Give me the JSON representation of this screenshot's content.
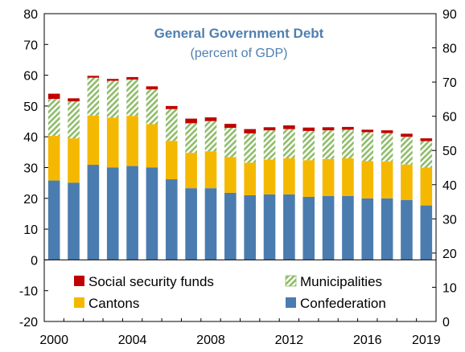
{
  "chart_data": {
    "type": "bar",
    "stacked": true,
    "title": "General Government Debt",
    "subtitle": "(percent of GDP)",
    "x": [
      2000,
      2001,
      2002,
      2003,
      2004,
      2005,
      2006,
      2007,
      2008,
      2009,
      2010,
      2011,
      2012,
      2013,
      2014,
      2015,
      2016,
      2017,
      2018,
      2019
    ],
    "x_tick_labels": [
      "2000",
      "2004",
      "2008",
      "2012",
      "2016",
      "2019"
    ],
    "y_left": {
      "ylim": [
        -20,
        80
      ],
      "ticks": [
        "-20",
        "-10",
        "0",
        "10",
        "20",
        "30",
        "40",
        "50",
        "60",
        "70",
        "80"
      ]
    },
    "y_right": {
      "ylim": [
        0,
        90
      ],
      "ticks": [
        "0",
        "10",
        "20",
        "30",
        "40",
        "50",
        "60",
        "70",
        "80",
        "90"
      ]
    },
    "series": [
      {
        "name": "Confederation",
        "color": "#4a7cb0",
        "values": [
          25.8,
          25.1,
          30.9,
          30.0,
          30.5,
          30.0,
          26.2,
          23.3,
          23.3,
          21.8,
          21.0,
          21.3,
          21.3,
          20.5,
          20.8,
          20.8,
          20.0,
          20.0,
          19.5,
          17.7
        ]
      },
      {
        "name": "Cantons",
        "color": "#f5b800",
        "values": [
          14.5,
          14.4,
          16.0,
          16.2,
          16.3,
          14.1,
          12.5,
          11.5,
          12.0,
          11.6,
          10.6,
          11.3,
          11.7,
          11.9,
          12.0,
          12.2,
          12.1,
          12.0,
          11.5,
          12.3
        ]
      },
      {
        "name": "Municipalities",
        "color": "#8fbc6a",
        "pattern": "diagonal-hatch",
        "values": [
          12.0,
          12.0,
          12.3,
          12.0,
          11.8,
          11.3,
          10.3,
          9.6,
          9.8,
          9.5,
          9.5,
          9.5,
          9.5,
          9.5,
          9.3,
          9.3,
          9.4,
          9.2,
          9.0,
          8.6
        ]
      },
      {
        "name": "Social security funds",
        "color": "#c00000",
        "values": [
          1.7,
          1.0,
          0.6,
          0.6,
          0.8,
          1.0,
          1.0,
          1.5,
          1.2,
          1.3,
          1.4,
          1.0,
          1.2,
          1.1,
          1.0,
          0.9,
          0.8,
          0.9,
          1.0,
          0.9
        ]
      }
    ],
    "legend_order": [
      "Social security funds",
      "Municipalities",
      "Cantons",
      "Confederation"
    ],
    "legend_placement": "bottom-inside",
    "grid": false
  }
}
